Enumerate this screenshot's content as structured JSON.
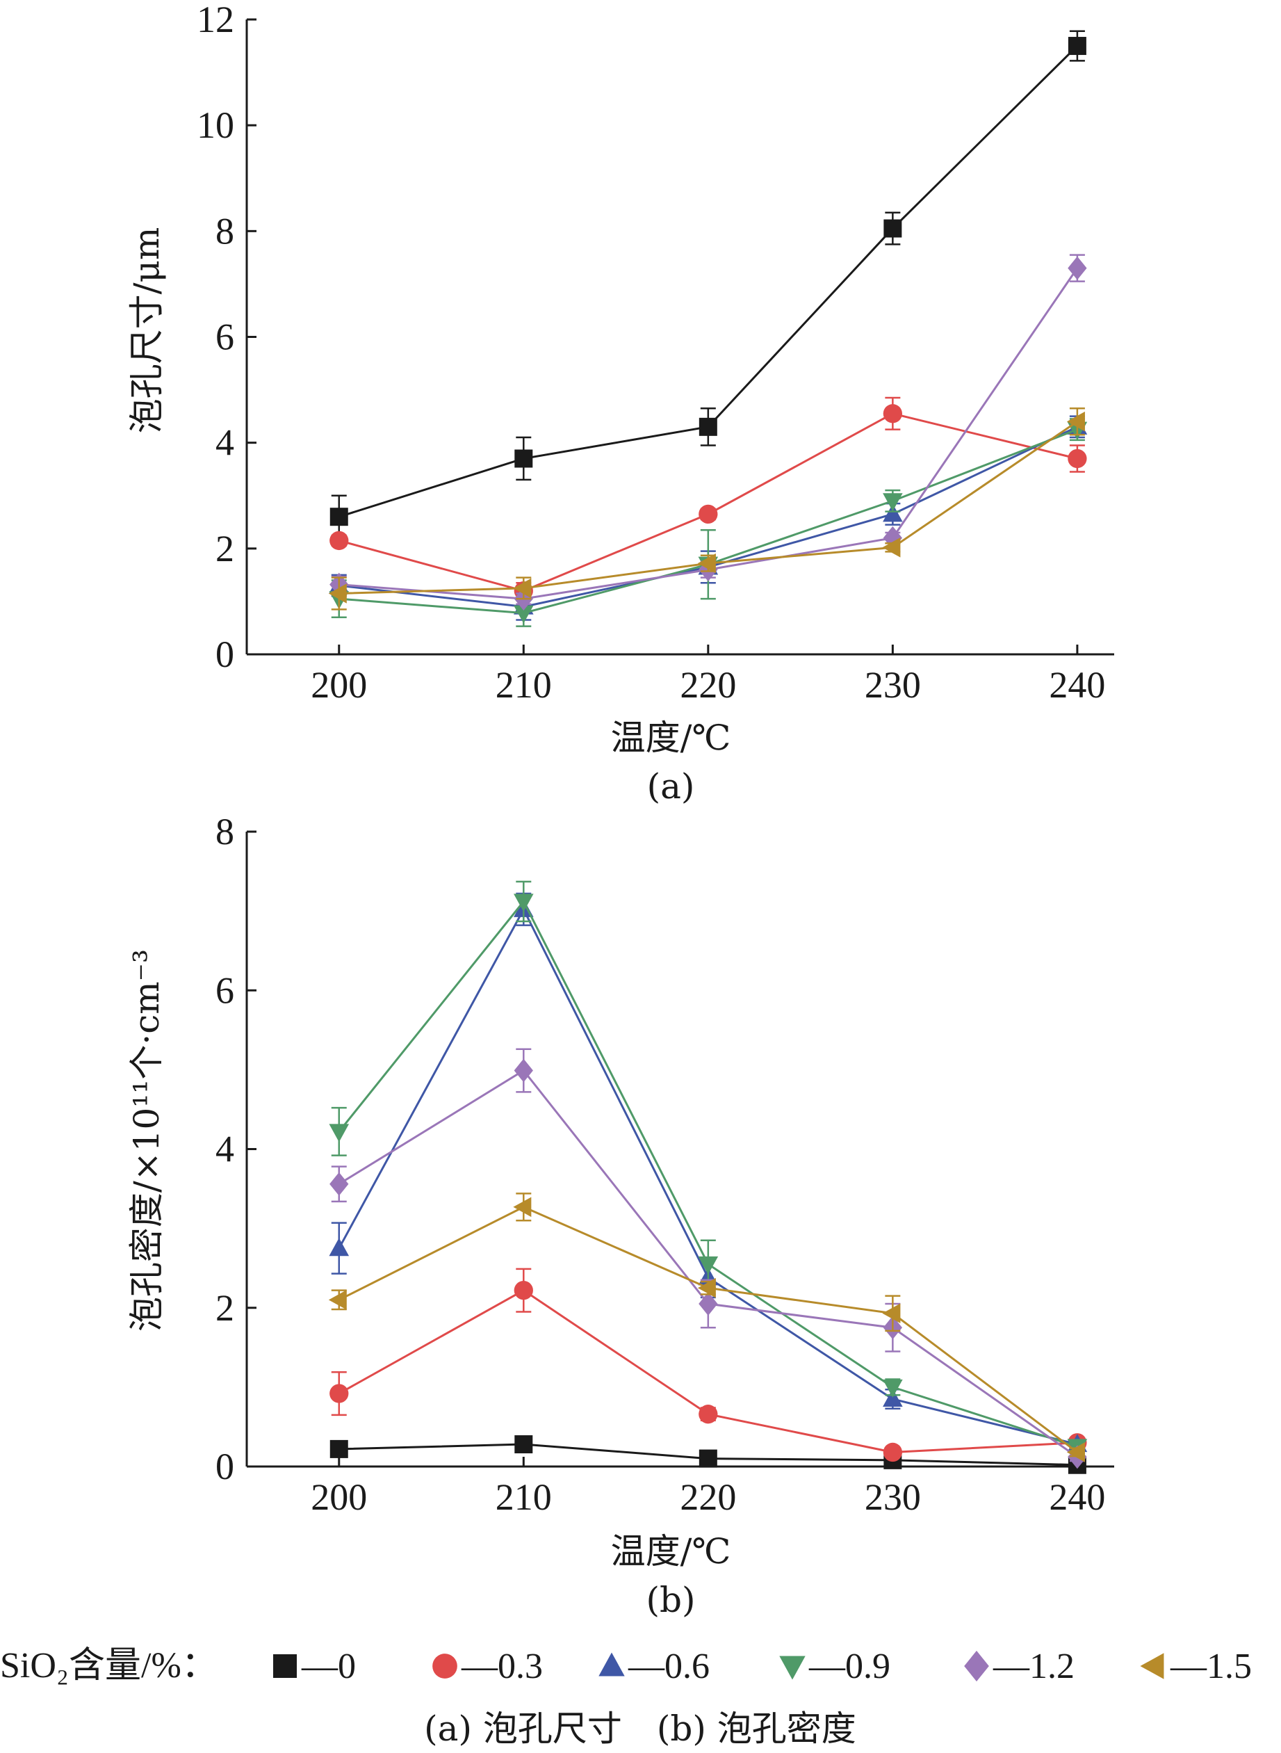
{
  "colors": {
    "s0": "#1a1a1a",
    "s03": "#e04a4a",
    "s06": "#3f57a6",
    "s09": "#4f9a68",
    "s12": "#9a76b8",
    "s15": "#b78b2a"
  },
  "legend": {
    "title": "SiO₂含量/%：",
    "items": [
      {
        "label": "—0",
        "marker": "square",
        "color": "#1a1a1a"
      },
      {
        "label": "—0.3",
        "marker": "circle",
        "color": "#e04a4a"
      },
      {
        "label": "—0.6",
        "marker": "triangle-up",
        "color": "#3f57a6"
      },
      {
        "label": "—0.9",
        "marker": "triangle-down",
        "color": "#4f9a68"
      },
      {
        "label": "—1.2",
        "marker": "diamond",
        "color": "#9a76b8"
      },
      {
        "label": "—1.5",
        "marker": "triangle-left",
        "color": "#b78b2a"
      }
    ]
  },
  "figure_caption": "(a) 泡孔尺寸　(b) 泡孔密度",
  "chart_data": [
    {
      "type": "line",
      "panel_label": "(a)",
      "xlabel": "温度/℃",
      "ylabel": "泡孔尺寸/μm",
      "x": [
        200,
        210,
        220,
        230,
        240
      ],
      "xlim": [
        195,
        242
      ],
      "ylim": [
        0,
        12
      ],
      "yticks": [
        0,
        2,
        4,
        6,
        8,
        10,
        12
      ],
      "series": [
        {
          "name": "0",
          "values": [
            2.6,
            3.7,
            4.3,
            8.05,
            11.5
          ],
          "errors": [
            0.4,
            0.4,
            0.35,
            0.3,
            0.28
          ]
        },
        {
          "name": "0.3",
          "values": [
            2.15,
            1.2,
            2.65,
            4.55,
            3.7
          ],
          "errors": [
            0.1,
            0.15,
            0.1,
            0.3,
            0.25
          ]
        },
        {
          "name": "0.6",
          "values": [
            1.3,
            0.9,
            1.65,
            2.65,
            4.3
          ],
          "errors": [
            0.2,
            0.25,
            0.3,
            0.2,
            0.2
          ]
        },
        {
          "name": "0.9",
          "values": [
            1.05,
            0.78,
            1.7,
            2.9,
            4.25
          ],
          "errors": [
            0.35,
            0.25,
            0.65,
            0.2,
            0.2
          ]
        },
        {
          "name": "1.2",
          "values": [
            1.32,
            1.05,
            1.6,
            2.2,
            7.3
          ],
          "errors": [
            0.15,
            0.1,
            0.15,
            0.1,
            0.25
          ]
        },
        {
          "name": "1.5",
          "values": [
            1.15,
            1.25,
            1.72,
            2.02,
            4.4
          ],
          "errors": [
            0.3,
            0.2,
            0.15,
            0.08,
            0.25
          ]
        }
      ]
    },
    {
      "type": "line",
      "panel_label": "(b)",
      "xlabel": "温度/℃",
      "ylabel": "泡孔密度/×10¹¹个·cm⁻³",
      "x": [
        200,
        210,
        220,
        230,
        240
      ],
      "xlim": [
        195,
        242
      ],
      "ylim": [
        0,
        8
      ],
      "yticks": [
        0,
        2,
        4,
        6,
        8
      ],
      "series": [
        {
          "name": "0",
          "values": [
            0.22,
            0.28,
            0.1,
            0.08,
            0.02
          ],
          "errors": [
            0.03,
            0.03,
            0.02,
            0.02,
            0.02
          ]
        },
        {
          "name": "0.3",
          "values": [
            0.92,
            2.22,
            0.66,
            0.18,
            0.3
          ],
          "errors": [
            0.27,
            0.27,
            0.08,
            0.05,
            0.05
          ]
        },
        {
          "name": "0.6",
          "values": [
            2.75,
            7.02,
            2.38,
            0.85,
            0.28
          ],
          "errors": [
            0.32,
            0.2,
            0.25,
            0.12,
            0.05
          ]
        },
        {
          "name": "0.9",
          "values": [
            4.22,
            7.12,
            2.55,
            1.0,
            0.25
          ],
          "errors": [
            0.3,
            0.25,
            0.3,
            0.1,
            0.05
          ]
        },
        {
          "name": "1.2",
          "values": [
            3.56,
            4.99,
            2.05,
            1.75,
            0.12
          ],
          "errors": [
            0.22,
            0.27,
            0.3,
            0.3,
            0.05
          ]
        },
        {
          "name": "1.5",
          "values": [
            2.1,
            3.27,
            2.25,
            1.93,
            0.18
          ],
          "errors": [
            0.12,
            0.17,
            0.08,
            0.22,
            0.05
          ]
        }
      ]
    }
  ]
}
